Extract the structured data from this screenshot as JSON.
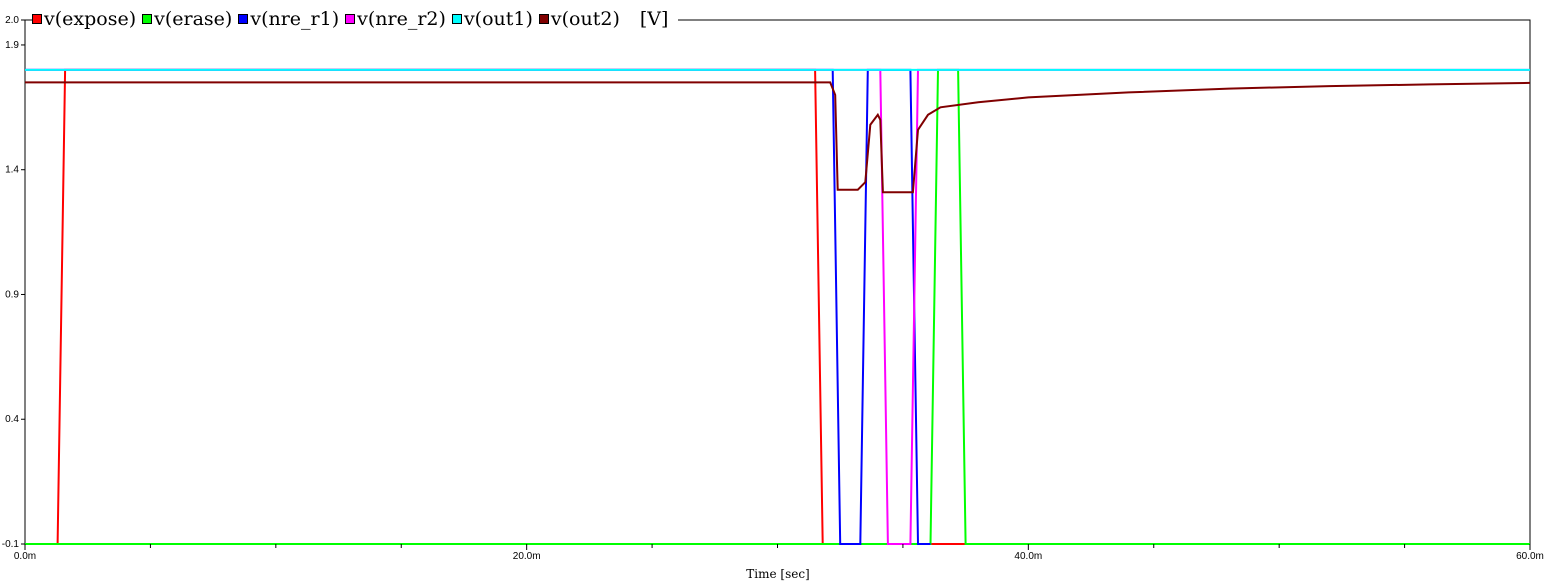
{
  "chart_data": {
    "type": "line",
    "xlabel": "Time [sec]",
    "unit_label": "[V]",
    "x_ticks": [
      "0.0m",
      "20.0m",
      "40.0m",
      "60.0m"
    ],
    "y_ticks": [
      "2.0",
      "1.9",
      "1.4",
      "0.9",
      "0.4",
      "-0.1"
    ],
    "xlim": [
      0,
      60
    ],
    "ylim": [
      -0.1,
      2.0
    ],
    "grid": false,
    "legend_position": "top-left",
    "series": [
      {
        "name": "v(expose)",
        "color": "#ff0000",
        "points": [
          [
            0,
            -0.1
          ],
          [
            1.3,
            -0.1
          ],
          [
            1.6,
            1.8
          ],
          [
            31.5,
            1.8
          ],
          [
            31.8,
            -0.1
          ],
          [
            37.5,
            -0.1
          ]
        ]
      },
      {
        "name": "v(erase)",
        "color": "#00ff00",
        "points": [
          [
            0,
            -0.1
          ],
          [
            36.1,
            -0.1
          ],
          [
            36.4,
            1.8
          ],
          [
            37.2,
            1.8
          ],
          [
            37.5,
            -0.1
          ],
          [
            60,
            -0.1
          ]
        ]
      },
      {
        "name": "v(nre_r1)",
        "color": "#0000ff",
        "points": [
          [
            0,
            1.8
          ],
          [
            32.2,
            1.8
          ],
          [
            32.5,
            -0.1
          ],
          [
            33.3,
            -0.1
          ],
          [
            33.6,
            1.8
          ],
          [
            35.3,
            1.8
          ],
          [
            35.6,
            -0.1
          ],
          [
            36.1,
            -0.1
          ]
        ]
      },
      {
        "name": "v(nre_r2)",
        "color": "#ff00ff",
        "points": [
          [
            0,
            1.8
          ],
          [
            34.1,
            1.8
          ],
          [
            34.4,
            -0.1
          ],
          [
            35.3,
            -0.1
          ],
          [
            35.6,
            1.8
          ],
          [
            60,
            1.8
          ]
        ]
      },
      {
        "name": "v(out1)",
        "color": "#00ffff",
        "points": [
          [
            0,
            1.8
          ],
          [
            60,
            1.8
          ]
        ]
      },
      {
        "name": "v(out2)",
        "color": "#800000",
        "points": [
          [
            0,
            1.75
          ],
          [
            32.1,
            1.75
          ],
          [
            32.3,
            1.7
          ],
          [
            32.4,
            1.32
          ],
          [
            33.2,
            1.32
          ],
          [
            33.5,
            1.35
          ],
          [
            33.7,
            1.58
          ],
          [
            34.0,
            1.62
          ],
          [
            34.1,
            1.6
          ],
          [
            34.2,
            1.31
          ],
          [
            35.0,
            1.31
          ],
          [
            35.4,
            1.31
          ],
          [
            35.6,
            1.56
          ],
          [
            36.0,
            1.62
          ],
          [
            36.5,
            1.65
          ],
          [
            38.0,
            1.67
          ],
          [
            40.0,
            1.69
          ],
          [
            44.0,
            1.71
          ],
          [
            48.0,
            1.725
          ],
          [
            52.0,
            1.735
          ],
          [
            56.0,
            1.742
          ],
          [
            60.0,
            1.748
          ]
        ]
      }
    ]
  }
}
